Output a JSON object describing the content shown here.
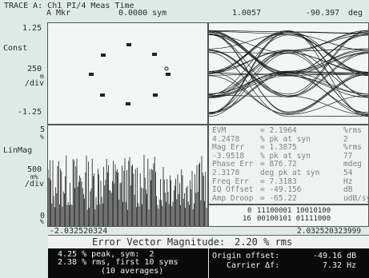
{
  "header": {
    "trace_label": "TRACE A: Ch1 PI/4 Meas Time",
    "marker_label": "A Mkr",
    "marker_value": "0.0000 sym",
    "readout_1": "1.0057",
    "readout_2": "-90.397",
    "readout_2_unit": "deg"
  },
  "constellation": {
    "top_value": "1.25",
    "format_label": "Const",
    "scale_value": "250",
    "scale_unit_1": "m",
    "scale_unit_2": "/div",
    "bottom_value": "-1.25"
  },
  "magnitude_trace": {
    "top_value": "5",
    "unit_1": "%",
    "format_label": "LinMag",
    "scale_value": "500",
    "scale_unit_1": "m%",
    "scale_unit_2": "/div",
    "bottom_value": "0",
    "bottom_unit": "%",
    "x_start": "-2.032520324",
    "x_end": "2.032520323999"
  },
  "stats": [
    {
      "left": "EVM",
      "value": "= 2.1964",
      "unit": "%rms"
    },
    {
      "left": "4.2478",
      "value": "% pk at syn",
      "unit": "2"
    },
    {
      "left": "Mag Err",
      "value": "= 1.3875",
      "unit": "%rms"
    },
    {
      "left": "-3.9518",
      "value": "% pk at syn",
      "unit": "77"
    },
    {
      "left": "Phase Err",
      "value": "= 876.72",
      "unit": "mdeg"
    },
    {
      "left": "2.3178",
      "value": "deg pk at syn",
      "unit": "54"
    },
    {
      "left": "Freq Err",
      "value": "= 7.3183",
      "unit": "Hz"
    },
    {
      "left": "IQ Offset",
      "value": "= -49.156",
      "unit": "dB"
    },
    {
      "left": "Amp Droop",
      "value": "= -65.22",
      "unit": "udB/sym"
    }
  ],
  "bits": {
    "row1_index": "0",
    "row1_bits": "11100001 10010100",
    "row2_index": "16",
    "row2_bits": "00100101 01111000"
  },
  "evm_banner": {
    "label": "Error Vector Magnitude:",
    "value": "2.20 % rms"
  },
  "summary_left": {
    "line1": "4.25 % peak, sym:  2",
    "line2": "2.38 % rms, first 10 syms",
    "line3": "(10 averages)"
  },
  "summary_right": {
    "origin_label": "Origin offset:",
    "origin_value": "-49.16 dB",
    "carrier_label": "Carrier Δf:",
    "carrier_value": "7.32 Hz"
  }
}
